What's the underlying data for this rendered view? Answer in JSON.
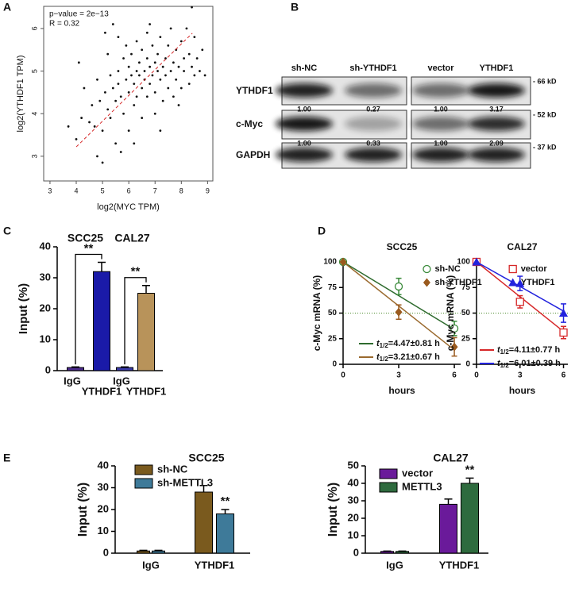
{
  "chart_data": [
    {
      "type": "scatter",
      "panel": "A",
      "annotations": [
        "p−value = 2e−13",
        "R = 0.32"
      ],
      "xlabel": "log2(MYC TPM)",
      "ylabel": "log2(YTHDF1 TPM)",
      "xlim": [
        2.76,
        9.2
      ],
      "ylim": [
        2.42,
        6.52
      ],
      "xticks": [
        3,
        4,
        5,
        6,
        7,
        8,
        9
      ],
      "yticks": [
        3,
        4,
        5,
        6
      ],
      "color": "#111111",
      "trend": {
        "color": "#d62728",
        "x": [
          4.0,
          8.42
        ],
        "values": [
          3.22,
          5.89
        ]
      },
      "x": [
        3.7,
        4.0,
        4.1,
        4.2,
        4.3,
        4.5,
        4.6,
        4.7,
        4.8,
        4.8,
        4.9,
        5.0,
        5.0,
        5.1,
        5.1,
        5.2,
        5.3,
        5.3,
        5.4,
        5.4,
        5.5,
        5.5,
        5.6,
        5.6,
        5.7,
        5.7,
        5.8,
        5.8,
        5.9,
        5.9,
        6.0,
        6.0,
        6.0,
        6.1,
        6.1,
        6.2,
        6.2,
        6.3,
        6.3,
        6.3,
        6.4,
        6.4,
        6.5,
        6.5,
        6.5,
        6.6,
        6.6,
        6.7,
        6.7,
        6.7,
        6.8,
        6.8,
        6.9,
        6.9,
        7.0,
        7.0,
        7.0,
        7.1,
        7.1,
        7.2,
        7.2,
        7.3,
        7.3,
        7.4,
        7.4,
        7.5,
        7.5,
        7.6,
        7.6,
        7.7,
        7.7,
        7.8,
        7.8,
        7.9,
        8.0,
        8.0,
        8.1,
        8.1,
        8.2,
        8.3,
        8.3,
        8.4,
        8.5,
        8.5,
        8.6,
        8.7,
        8.8,
        8.9,
        8.4,
        6.2,
        5.2,
        7.9,
        6.8,
        5.6,
        7.2
      ],
      "values": [
        3.7,
        3.4,
        5.2,
        3.9,
        4.6,
        3.8,
        4.2,
        3.7,
        3.0,
        4.8,
        4.3,
        3.6,
        2.85,
        4.5,
        5.9,
        4.1,
        3.9,
        4.9,
        4.6,
        6.1,
        3.3,
        4.3,
        5.0,
        4.7,
        3.1,
        4.4,
        5.3,
        4.0,
        4.8,
        5.6,
        4.5,
        5.1,
        3.6,
        4.9,
        5.4,
        4.2,
        4.7,
        5.0,
        5.7,
        4.4,
        4.9,
        5.2,
        4.6,
        5.5,
        3.9,
        5.0,
        4.8,
        5.3,
        4.4,
        5.9,
        5.1,
        4.7,
        4.9,
        5.6,
        5.2,
        4.5,
        4.0,
        5.0,
        5.4,
        4.8,
        5.8,
        5.1,
        4.3,
        5.3,
        4.9,
        5.6,
        4.6,
        5.0,
        6.0,
        5.2,
        4.4,
        5.5,
        4.8,
        5.1,
        5.7,
        4.6,
        5.3,
        5.0,
        6.0,
        4.7,
        5.4,
        5.1,
        5.8,
        4.9,
        5.3,
        5.0,
        5.5,
        4.9,
        6.5,
        3.3,
        5.4,
        4.2,
        6.1,
        5.8,
        3.6
      ]
    },
    {
      "type": "blot",
      "panel": "B",
      "lanes": [
        "sh-NC",
        "sh-YTHDF1",
        "vector",
        "YTHDF1"
      ],
      "rows": [
        "YTHDF1",
        "c-Myc",
        "GAPDH"
      ],
      "sizes": [
        "- 66 kD",
        "- 52 kD",
        "- 37 kD"
      ],
      "quant": [
        [
          "1.00",
          "0.27",
          "1.00",
          "3.17"
        ],
        [
          "1.00",
          "0.33",
          "1.00",
          "2.09"
        ]
      ]
    },
    {
      "type": "bar",
      "panel": "C",
      "ylabel": "Input (%)",
      "group_labels": [
        "SCC25",
        "CAL27"
      ],
      "categories": [
        "IgG",
        "YTHDF1",
        "IgG",
        "YTHDF1"
      ],
      "values": [
        1,
        32,
        1,
        25
      ],
      "errors": [
        0.2,
        3,
        0.2,
        2.5
      ],
      "colors": [
        "#4b2a8c",
        "#1a1aa8",
        "#3a3aa8",
        "#b8935a"
      ],
      "ylim": [
        0,
        40
      ],
      "yticks": [
        0,
        10,
        20,
        30,
        40
      ],
      "significance": [
        {
          "text": "**",
          "from": 0,
          "to": 1
        },
        {
          "text": "**",
          "from": 2,
          "to": 3
        }
      ]
    },
    {
      "type": "line",
      "panel": "D",
      "title": "SCC25",
      "xlabel": "hours",
      "ylabel": "c-Myc mRNA (%)",
      "xlim": [
        0,
        6.34
      ],
      "ylim": [
        0,
        100
      ],
      "xticks": [
        0,
        3,
        6
      ],
      "yticks": [
        0,
        25,
        50,
        75,
        100
      ],
      "hline": 50,
      "series": [
        {
          "name": "sh-NC",
          "color": "#3a8a3a",
          "marker": "circle-open",
          "x": [
            0,
            3,
            6
          ],
          "values": [
            100,
            76,
            35
          ],
          "errors": [
            0,
            8,
            7
          ],
          "fit": {
            "x": [
              0,
              6
            ],
            "values": [
              100,
              34
            ]
          },
          "fit_label": {
            "t": "t",
            "sub": "1/2",
            "text": "=4.47±0.81 h"
          },
          "fit_color": "#2e6b2e"
        },
        {
          "name": "sh-YTHDF1",
          "color": "#9a5a1e",
          "marker": "diamond",
          "x": [
            0,
            3,
            6
          ],
          "values": [
            100,
            51,
            17
          ],
          "errors": [
            0,
            7,
            9
          ],
          "fit": {
            "x": [
              0,
              6
            ],
            "values": [
              100,
              14
            ]
          },
          "fit_label": {
            "t": "t",
            "sub": "1/2",
            "text": "=3.21±0.67 h"
          },
          "fit_color": "#9a6a2e"
        }
      ]
    },
    {
      "type": "line",
      "title": "CAL27",
      "xlabel": "hours",
      "ylabel": "c-Myc mRNA (%)",
      "xlim": [
        0,
        6.3
      ],
      "ylim": [
        0,
        100
      ],
      "xticks": [
        0,
        3,
        6
      ],
      "yticks": [
        0,
        25,
        50,
        75,
        100
      ],
      "hline": 50,
      "series": [
        {
          "name": "vector",
          "color": "#d62728",
          "marker": "square-open",
          "x": [
            0,
            3,
            6
          ],
          "values": [
            100,
            61,
            31
          ],
          "errors": [
            0,
            6,
            6
          ],
          "fit": {
            "x": [
              0,
              6
            ],
            "values": [
              100,
              32
            ]
          },
          "fit_label": {
            "t": "t",
            "sub": "1/2",
            "text": "=4.11±0.77 h"
          },
          "fit_color": "#d62728"
        },
        {
          "name": "YTHDF1",
          "color": "#2222dd",
          "marker": "triangle",
          "x": [
            0,
            3,
            6
          ],
          "values": [
            100,
            79,
            50
          ],
          "errors": [
            0,
            7,
            9
          ],
          "fit": {
            "x": [
              0,
              6
            ],
            "values": [
              100,
              52
            ]
          },
          "fit_label": {
            "t": "t",
            "sub": "1/2",
            "text": "=6.01±0.39 h"
          },
          "fit_color": "#2222dd"
        }
      ]
    },
    {
      "type": "grouped_bar",
      "panel": "E",
      "title": "SCC25",
      "ylabel": "Input (%)",
      "categories": [
        "IgG",
        "YTHDF1"
      ],
      "ylim": [
        0,
        40
      ],
      "yticks": [
        0,
        10,
        20,
        30,
        40
      ],
      "series": [
        {
          "name": "sh-NC",
          "color": "#7a5a1e",
          "values": [
            1,
            28
          ],
          "errors": [
            0.3,
            3
          ]
        },
        {
          "name": "sh-METTL3",
          "color": "#3e7a99",
          "values": [
            1,
            18
          ],
          "errors": [
            0.3,
            2
          ]
        }
      ],
      "annotations": [
        {
          "text": "**",
          "series": 1,
          "index": 1
        }
      ]
    },
    {
      "type": "grouped_bar",
      "title": "CAL27",
      "ylabel": "Input (%)",
      "categories": [
        "IgG",
        "YTHDF1"
      ],
      "ylim": [
        0,
        50
      ],
      "yticks": [
        0,
        10,
        20,
        30,
        40,
        50
      ],
      "series": [
        {
          "name": "vector",
          "color": "#6a1a9a",
          "values": [
            1,
            28
          ],
          "errors": [
            0.2,
            3
          ]
        },
        {
          "name": "METTL3",
          "color": "#2e6b3e",
          "values": [
            1,
            40
          ],
          "errors": [
            0.2,
            3
          ]
        }
      ],
      "annotations": [
        {
          "text": "**",
          "series": 1,
          "index": 1
        }
      ]
    }
  ]
}
